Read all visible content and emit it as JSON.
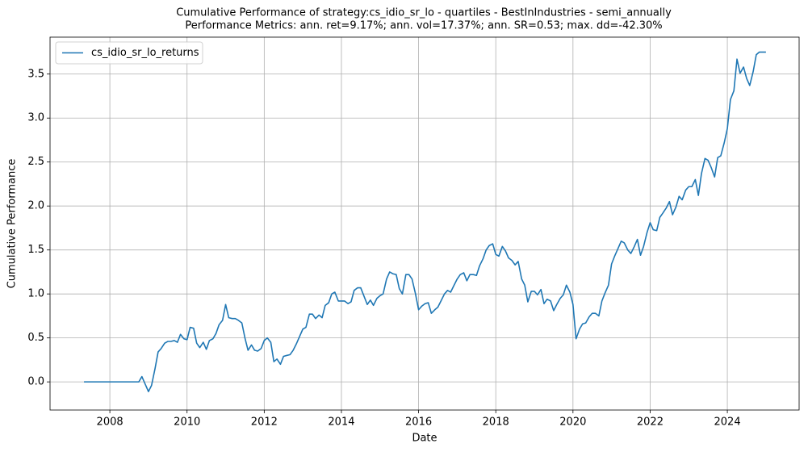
{
  "chart_data": {
    "type": "line",
    "title": "Cumulative Performance of strategy:cs_idio_sr_lo - quartiles - BestInIndustries - semi_annually",
    "subtitle": "Performance Metrics: ann. ret=9.17%; ann. vol=17.37%; ann. SR=0.53; max. dd=-42.30%",
    "xlabel": "Date",
    "ylabel": "Cumulative Performance",
    "xlim": [
      2006.45,
      2025.86
    ],
    "ylim": [
      -0.32,
      3.92
    ],
    "xticks": [
      2008,
      2010,
      2012,
      2014,
      2016,
      2018,
      2020,
      2022,
      2024
    ],
    "yticks": [
      {
        "value": 0,
        "label": "0.0"
      },
      0.5,
      {
        "value": 1,
        "label": "1.0"
      },
      1.5,
      {
        "value": 2,
        "label": "2.0"
      },
      2.5,
      {
        "value": 3,
        "label": "3.0"
      },
      3.5
    ],
    "grid": true,
    "legend": "upper left",
    "x": [
      2007.33,
      2008.0,
      2008.75,
      2008.83,
      2008.92,
      2009.0,
      2009.08,
      2009.17,
      2009.25,
      2009.33,
      2009.42,
      2009.5,
      2009.58,
      2009.67,
      2009.75,
      2009.83,
      2009.92,
      2010.0,
      2010.08,
      2010.17,
      2010.25,
      2010.33,
      2010.42,
      2010.5,
      2010.58,
      2010.67,
      2010.75,
      2010.83,
      2010.92,
      2011.0,
      2011.08,
      2011.17,
      2011.25,
      2011.33,
      2011.42,
      2011.5,
      2011.58,
      2011.67,
      2011.75,
      2011.83,
      2011.92,
      2012.0,
      2012.08,
      2012.17,
      2012.25,
      2012.33,
      2012.42,
      2012.5,
      2012.58,
      2012.67,
      2012.75,
      2012.83,
      2012.92,
      2013.0,
      2013.08,
      2013.17,
      2013.25,
      2013.33,
      2013.42,
      2013.5,
      2013.58,
      2013.67,
      2013.75,
      2013.83,
      2013.92,
      2014.0,
      2014.08,
      2014.17,
      2014.25,
      2014.33,
      2014.42,
      2014.5,
      2014.58,
      2014.67,
      2014.75,
      2014.83,
      2014.92,
      2015.0,
      2015.08,
      2015.17,
      2015.25,
      2015.33,
      2015.42,
      2015.5,
      2015.58,
      2015.67,
      2015.75,
      2015.83,
      2015.92,
      2016.0,
      2016.08,
      2016.17,
      2016.25,
      2016.33,
      2016.42,
      2016.5,
      2016.58,
      2016.67,
      2016.75,
      2016.83,
      2016.92,
      2017.0,
      2017.08,
      2017.17,
      2017.25,
      2017.33,
      2017.42,
      2017.5,
      2017.58,
      2017.67,
      2017.75,
      2017.83,
      2017.92,
      2018.0,
      2018.08,
      2018.17,
      2018.25,
      2018.33,
      2018.42,
      2018.5,
      2018.58,
      2018.67,
      2018.75,
      2018.83,
      2018.92,
      2019.0,
      2019.08,
      2019.17,
      2019.25,
      2019.33,
      2019.42,
      2019.5,
      2019.58,
      2019.67,
      2019.75,
      2019.83,
      2019.92,
      2020.0,
      2020.08,
      2020.17,
      2020.25,
      2020.33,
      2020.42,
      2020.5,
      2020.58,
      2020.67,
      2020.75,
      2020.83,
      2020.92,
      2021.0,
      2021.08,
      2021.17,
      2021.25,
      2021.33,
      2021.42,
      2021.5,
      2021.58,
      2021.67,
      2021.75,
      2021.83,
      2021.92,
      2022.0,
      2022.08,
      2022.17,
      2022.25,
      2022.33,
      2022.42,
      2022.5,
      2022.58,
      2022.67,
      2022.75,
      2022.83,
      2022.92,
      2023.0,
      2023.08,
      2023.17,
      2023.25,
      2023.33,
      2023.42,
      2023.5,
      2023.58,
      2023.67,
      2023.75,
      2023.83,
      2023.92,
      2024.0,
      2024.08,
      2024.17,
      2024.25,
      2024.33,
      2024.42,
      2024.5,
      2024.58,
      2024.67,
      2024.75,
      2024.83,
      2024.92,
      2025.0
    ],
    "series": [
      {
        "name": "cs_idio_sr_lo_returns",
        "color": "#1f77b4",
        "values": [
          0,
          0,
          0,
          0.06,
          -0.03,
          -0.11,
          -0.04,
          0.15,
          0.34,
          0.38,
          0.44,
          0.46,
          0.46,
          0.47,
          0.45,
          0.54,
          0.49,
          0.48,
          0.62,
          0.61,
          0.44,
          0.39,
          0.45,
          0.37,
          0.47,
          0.49,
          0.55,
          0.65,
          0.7,
          0.88,
          0.73,
          0.72,
          0.72,
          0.7,
          0.67,
          0.5,
          0.36,
          0.42,
          0.36,
          0.35,
          0.38,
          0.47,
          0.5,
          0.45,
          0.23,
          0.26,
          0.2,
          0.29,
          0.3,
          0.31,
          0.36,
          0.43,
          0.52,
          0.6,
          0.62,
          0.77,
          0.77,
          0.72,
          0.76,
          0.73,
          0.87,
          0.9,
          1.0,
          1.02,
          0.92,
          0.92,
          0.92,
          0.89,
          0.91,
          1.04,
          1.07,
          1.07,
          0.98,
          0.88,
          0.93,
          0.87,
          0.95,
          0.98,
          1.0,
          1.17,
          1.25,
          1.23,
          1.22,
          1.06,
          1.0,
          1.22,
          1.22,
          1.17,
          1.0,
          0.82,
          0.86,
          0.89,
          0.9,
          0.78,
          0.82,
          0.85,
          0.92,
          1.0,
          1.04,
          1.02,
          1.1,
          1.17,
          1.22,
          1.24,
          1.15,
          1.22,
          1.22,
          1.21,
          1.32,
          1.4,
          1.5,
          1.55,
          1.57,
          1.45,
          1.43,
          1.54,
          1.49,
          1.41,
          1.38,
          1.33,
          1.37,
          1.17,
          1.1,
          0.91,
          1.03,
          1.03,
          0.99,
          1.05,
          0.89,
          0.94,
          0.92,
          0.81,
          0.88,
          0.95,
          0.99,
          1.1,
          1.02,
          0.88,
          0.49,
          0.6,
          0.66,
          0.67,
          0.74,
          0.78,
          0.78,
          0.75,
          0.92,
          1.01,
          1.1,
          1.34,
          1.43,
          1.52,
          1.6,
          1.58,
          1.5,
          1.46,
          1.53,
          1.62,
          1.44,
          1.54,
          1.7,
          1.81,
          1.73,
          1.72,
          1.87,
          1.92,
          1.98,
          2.05,
          1.9,
          1.99,
          2.11,
          2.07,
          2.18,
          2.22,
          2.22,
          2.3,
          2.12,
          2.37,
          2.54,
          2.52,
          2.44,
          2.33,
          2.55,
          2.57,
          2.72,
          2.88,
          3.21,
          3.31,
          3.67,
          3.51,
          3.58,
          3.45,
          3.37,
          3.53,
          3.72,
          3.75,
          3.75,
          3.75
        ]
      }
    ]
  }
}
